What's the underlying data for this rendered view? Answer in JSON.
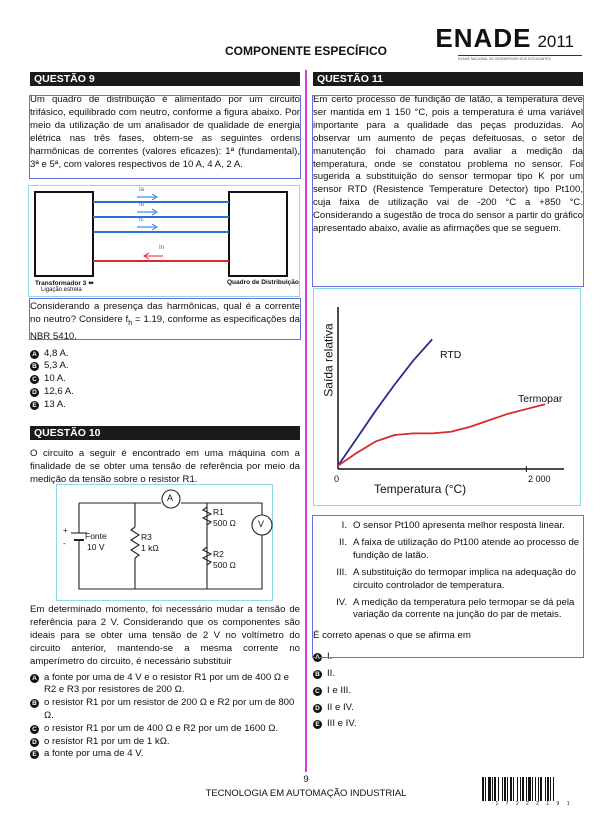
{
  "header": {
    "brand": "ENADE",
    "year": "2011",
    "subtitle": "EXAME NACIONAL DE DESEMPENHO DOS ESTUDANTES",
    "section_title": "COMPONENTE ESPECÍFICO"
  },
  "q9": {
    "title": "QUESTÃO 9",
    "intro": "Um quadro de distribuição é alimentado por um circuito trifásico, equilibrado com neutro, conforme a figura abaixo. Por meio da utilização de um analisador de qualidade de energia elétrica nas três fases, obtem-se as seguintes ordens harmônicas de correntes (valores eficazes): 1ª (fundamental), 3ª e 5ª, com valores respectivos de 10 A, 4 A, 2 A.",
    "figure": {
      "left_label_line1": "Transformador 3",
      "left_label_line2": "Ligação estrela",
      "right_label": "Quadro de Distribuição",
      "currents": [
        "Ia",
        "Ib",
        "Ic"
      ],
      "neutral": "In"
    },
    "question_pre": "Considerando a presença das harmônicas, qual é a corrente no neutro? Considere f",
    "question_sub": "h",
    "question_post": " = 1.19, conforme as especificações da NBR 5410.",
    "options": [
      {
        "letter": "A",
        "text": "4,8 A."
      },
      {
        "letter": "B",
        "text": "5,3 A."
      },
      {
        "letter": "C",
        "text": "10 A."
      },
      {
        "letter": "D",
        "text": "12,6 A."
      },
      {
        "letter": "E",
        "text": "13 A."
      }
    ]
  },
  "q10": {
    "title": "QUESTÃO 10",
    "intro": "O circuito a seguir é encontrado em uma máquina com a finalidade de se obter uma tensão de referência por meio da medição da tensão sobre o resistor R1.",
    "circuit": {
      "ammeter": "A",
      "voltmeter": "V",
      "source_label": "Fonte",
      "source_value": "10 V",
      "r1_label": "R1",
      "r1_value": "500 Ω",
      "r2_label": "R2",
      "r2_value": "500 Ω",
      "r3_label": "R3",
      "r3_value": "1 kΩ",
      "plus": "+",
      "minus": "-"
    },
    "body": "Em determinado momento, foi necessário mudar a tensão de referência para 2 V. Considerando que os componentes são ideais para se obter uma tensão de 2 V no voltímetro do circuito anterior, mantendo-se a mesma corrente no amperímetro do circuito, é necessário substituir",
    "options": [
      {
        "letter": "A",
        "text": "a fonte por uma de 4 V e o resistor R1 por um de 400 Ω e R2 e R3 por resistores de 200 Ω."
      },
      {
        "letter": "B",
        "text": "o resistor R1 por um resistor de 200 Ω e R2 por um de 800 Ω."
      },
      {
        "letter": "C",
        "text": "o resistor R1 por um de 400 Ω e R2 por um de 1600 Ω."
      },
      {
        "letter": "D",
        "text": "o resistor R1 por um de 1 kΩ."
      },
      {
        "letter": "E",
        "text": "a fonte por uma de 4 V."
      }
    ]
  },
  "q11": {
    "title": "QUESTÃO 11",
    "intro": "Em certo processo de fundição de latão, a temperatura deve ser mantida em 1 150 °C, pois a temperatura é uma variável importante para a qualidade das peças produzidas. Ao observar um aumento de peças defeituosas, o setor de manutenção foi chamado para avaliar a medição da temperatura, onde se constatou problema no sensor. Foi sugerida a substituição do sensor termopar tipo K por um sensor RTD (Resistence Temperature Detector) tipo Pt100, cuja faixa de utilização vai de -200 °C a +850 °C. Considerando a sugestão de troca do sensor a partir do gráfico apresentado abaixo, avalie as afirmações que se seguem.",
    "statements": [
      {
        "num": "I.",
        "text": "O sensor Pt100 apresenta melhor resposta linear."
      },
      {
        "num": "II.",
        "text": "A faixa de utilização do Pt100 atende ao processo de fundição de latão."
      },
      {
        "num": "III.",
        "text": "A substituição do termopar implica na adequação do circuito controlador de temperatura."
      },
      {
        "num": "IV.",
        "text": "A medição da temperatura pelo termopar se dá pela variação da corrente na junção do par de metais."
      }
    ],
    "prompt": "É correto apenas o que se afirma em",
    "options": [
      {
        "letter": "A",
        "text": "I."
      },
      {
        "letter": "B",
        "text": "II."
      },
      {
        "letter": "C",
        "text": "I e III."
      },
      {
        "letter": "D",
        "text": "II e IV."
      },
      {
        "letter": "E",
        "text": "III e IV."
      }
    ]
  },
  "chart_data": {
    "type": "line",
    "xlabel": "Temperatura (°C)",
    "ylabel": "Saída relativa",
    "x_tick_labels": [
      "0",
      "2 000"
    ],
    "xlim": [
      0,
      2400
    ],
    "ylim": [
      0,
      1
    ],
    "series": [
      {
        "name": "RTD",
        "color": "#2b2b8f",
        "x": [
          0,
          200,
          400,
          600,
          800,
          1000
        ],
        "y": [
          0.02,
          0.19,
          0.36,
          0.52,
          0.67,
          0.8
        ]
      },
      {
        "name": "Termopar",
        "color": "#d92b2b",
        "x": [
          0,
          200,
          400,
          600,
          800,
          1000,
          1200,
          1400,
          1600,
          1800,
          2000,
          2200
        ],
        "y": [
          0.02,
          0.1,
          0.17,
          0.21,
          0.22,
          0.22,
          0.23,
          0.26,
          0.3,
          0.34,
          0.37,
          0.4
        ]
      }
    ]
  },
  "footer": {
    "page": "9",
    "course": "TECNOLOGIA EM AUTOMAÇÃO INDUSTRIAL",
    "barcode_digits": "1 7 2 2 2 1 9 1"
  },
  "colors": {
    "bar": "#1b1b1b",
    "divider": "#d63fd0",
    "rtd": "#2b2b8f",
    "termopar": "#d92b2b"
  }
}
